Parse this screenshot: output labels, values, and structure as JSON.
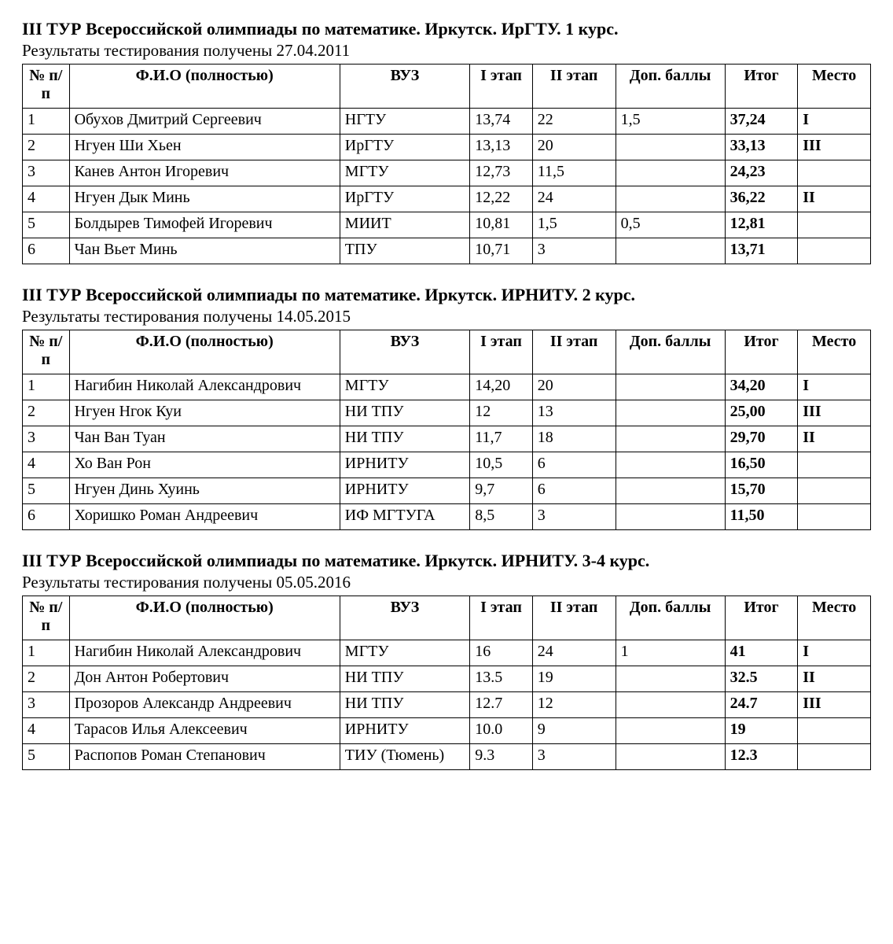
{
  "columns": [
    "№ п/п",
    "Ф.И.О (полностью)",
    "ВУЗ",
    "I этап",
    "II этап",
    "Доп. баллы",
    "Итог",
    "Место"
  ],
  "sections": [
    {
      "title": "III ТУР Всероссийской олимпиады по математике. Иркутск. ИрГТУ. 1 курс.",
      "subtitle": "Результаты тестирования получены 27.04.2011",
      "rows": [
        {
          "n": "1",
          "name": "Обухов Дмитрий Сергеевич",
          "vuz": "НГТУ",
          "s1": "13,74",
          "s2": "22",
          "dop": "1,5",
          "itog": "37,24",
          "place": "I"
        },
        {
          "n": "2",
          "name": "Нгуен Ши Хьен",
          "vuz": "ИрГТУ",
          "s1": "13,13",
          "s2": "20",
          "dop": "",
          "itog": "33,13",
          "place": "III"
        },
        {
          "n": "3",
          "name": "Канев Антон Игоревич",
          "vuz": "МГТУ",
          "s1": "12,73",
          "s2": "11,5",
          "dop": "",
          "itog": "24,23",
          "place": ""
        },
        {
          "n": "4",
          "name": "Нгуен Дык Минь",
          "vuz": "ИрГТУ",
          "s1": "12,22",
          "s2": "24",
          "dop": "",
          "itog": "36,22",
          "place": "II"
        },
        {
          "n": "5",
          "name": "Болдырев Тимофей Игоревич",
          "vuz": "МИИТ",
          "s1": "10,81",
          "s2": "1,5",
          "dop": "0,5",
          "itog": "12,81",
          "place": ""
        },
        {
          "n": "6",
          "name": "Чан Вьет Минь",
          "vuz": "ТПУ",
          "s1": "10,71",
          "s2": "3",
          "dop": "",
          "itog": "13,71",
          "place": ""
        }
      ]
    },
    {
      "title": "III ТУР Всероссийской олимпиады по математике. Иркутск. ИРНИТУ. 2 курс.",
      "subtitle": "Результаты тестирования получены 14.05.2015",
      "rows": [
        {
          "n": "1",
          "name": "Нагибин Николай Александрович",
          "vuz": "МГТУ",
          "s1": "14,20",
          "s2": "20",
          "dop": "",
          "itog": "34,20",
          "place": "I"
        },
        {
          "n": "2",
          "name": "Нгуен Нгок Куи",
          "vuz": "НИ ТПУ",
          "s1": "12",
          "s2": "13",
          "dop": "",
          "itog": "25,00",
          "place": "III"
        },
        {
          "n": "3",
          "name": "Чан Ван Туан",
          "vuz": "НИ ТПУ",
          "s1": "11,7",
          "s2": "18",
          "dop": "",
          "itog": "29,70",
          "place": "II"
        },
        {
          "n": "4",
          "name": "Хо Ван Рон",
          "vuz": "ИРНИТУ",
          "s1": "10,5",
          "s2": "6",
          "dop": "",
          "itog": "16,50",
          "place": ""
        },
        {
          "n": "5",
          "name": "Нгуен Динь Хуинь",
          "vuz": "ИРНИТУ",
          "s1": "9,7",
          "s2": "6",
          "dop": "",
          "itog": "15,70",
          "place": ""
        },
        {
          "n": "6",
          "name": "Хоришко Роман Андреевич",
          "vuz": "ИФ МГТУГА",
          "s1": "8,5",
          "s2": "3",
          "dop": "",
          "itog": "11,50",
          "place": ""
        }
      ]
    },
    {
      "title": "III ТУР Всероссийской олимпиады по математике. Иркутск. ИРНИТУ. 3-4 курс.",
      "subtitle": "Результаты тестирования получены 05.05.2016",
      "rows": [
        {
          "n": "1",
          "name": "Нагибин Николай Александрович",
          "vuz": "МГТУ",
          "s1": "16",
          "s2": "24",
          "dop": "1",
          "itog": "41",
          "place": "I"
        },
        {
          "n": "2",
          "name": "Дон Антон Робертович",
          "vuz": "НИ ТПУ",
          "s1": "13.5",
          "s2": "19",
          "dop": "",
          "itog": "32.5",
          "place": "II"
        },
        {
          "n": "3",
          "name": "Прозоров Александр Андреевич",
          "vuz": "НИ ТПУ",
          "s1": "12.7",
          "s2": "12",
          "dop": "",
          "itog": "24.7",
          "place": "III"
        },
        {
          "n": "4",
          "name": "Тарасов Илья Алексеевич",
          "vuz": "ИРНИТУ",
          "s1": "10.0",
          "s2": "9",
          "dop": "",
          "itog": "19",
          "place": ""
        },
        {
          "n": "5",
          "name": "Распопов Роман Степанович",
          "vuz": "ТИУ (Тюмень)",
          "s1": "9.3",
          "s2": "3",
          "dop": "",
          "itog": "12.3",
          "place": ""
        }
      ]
    }
  ]
}
